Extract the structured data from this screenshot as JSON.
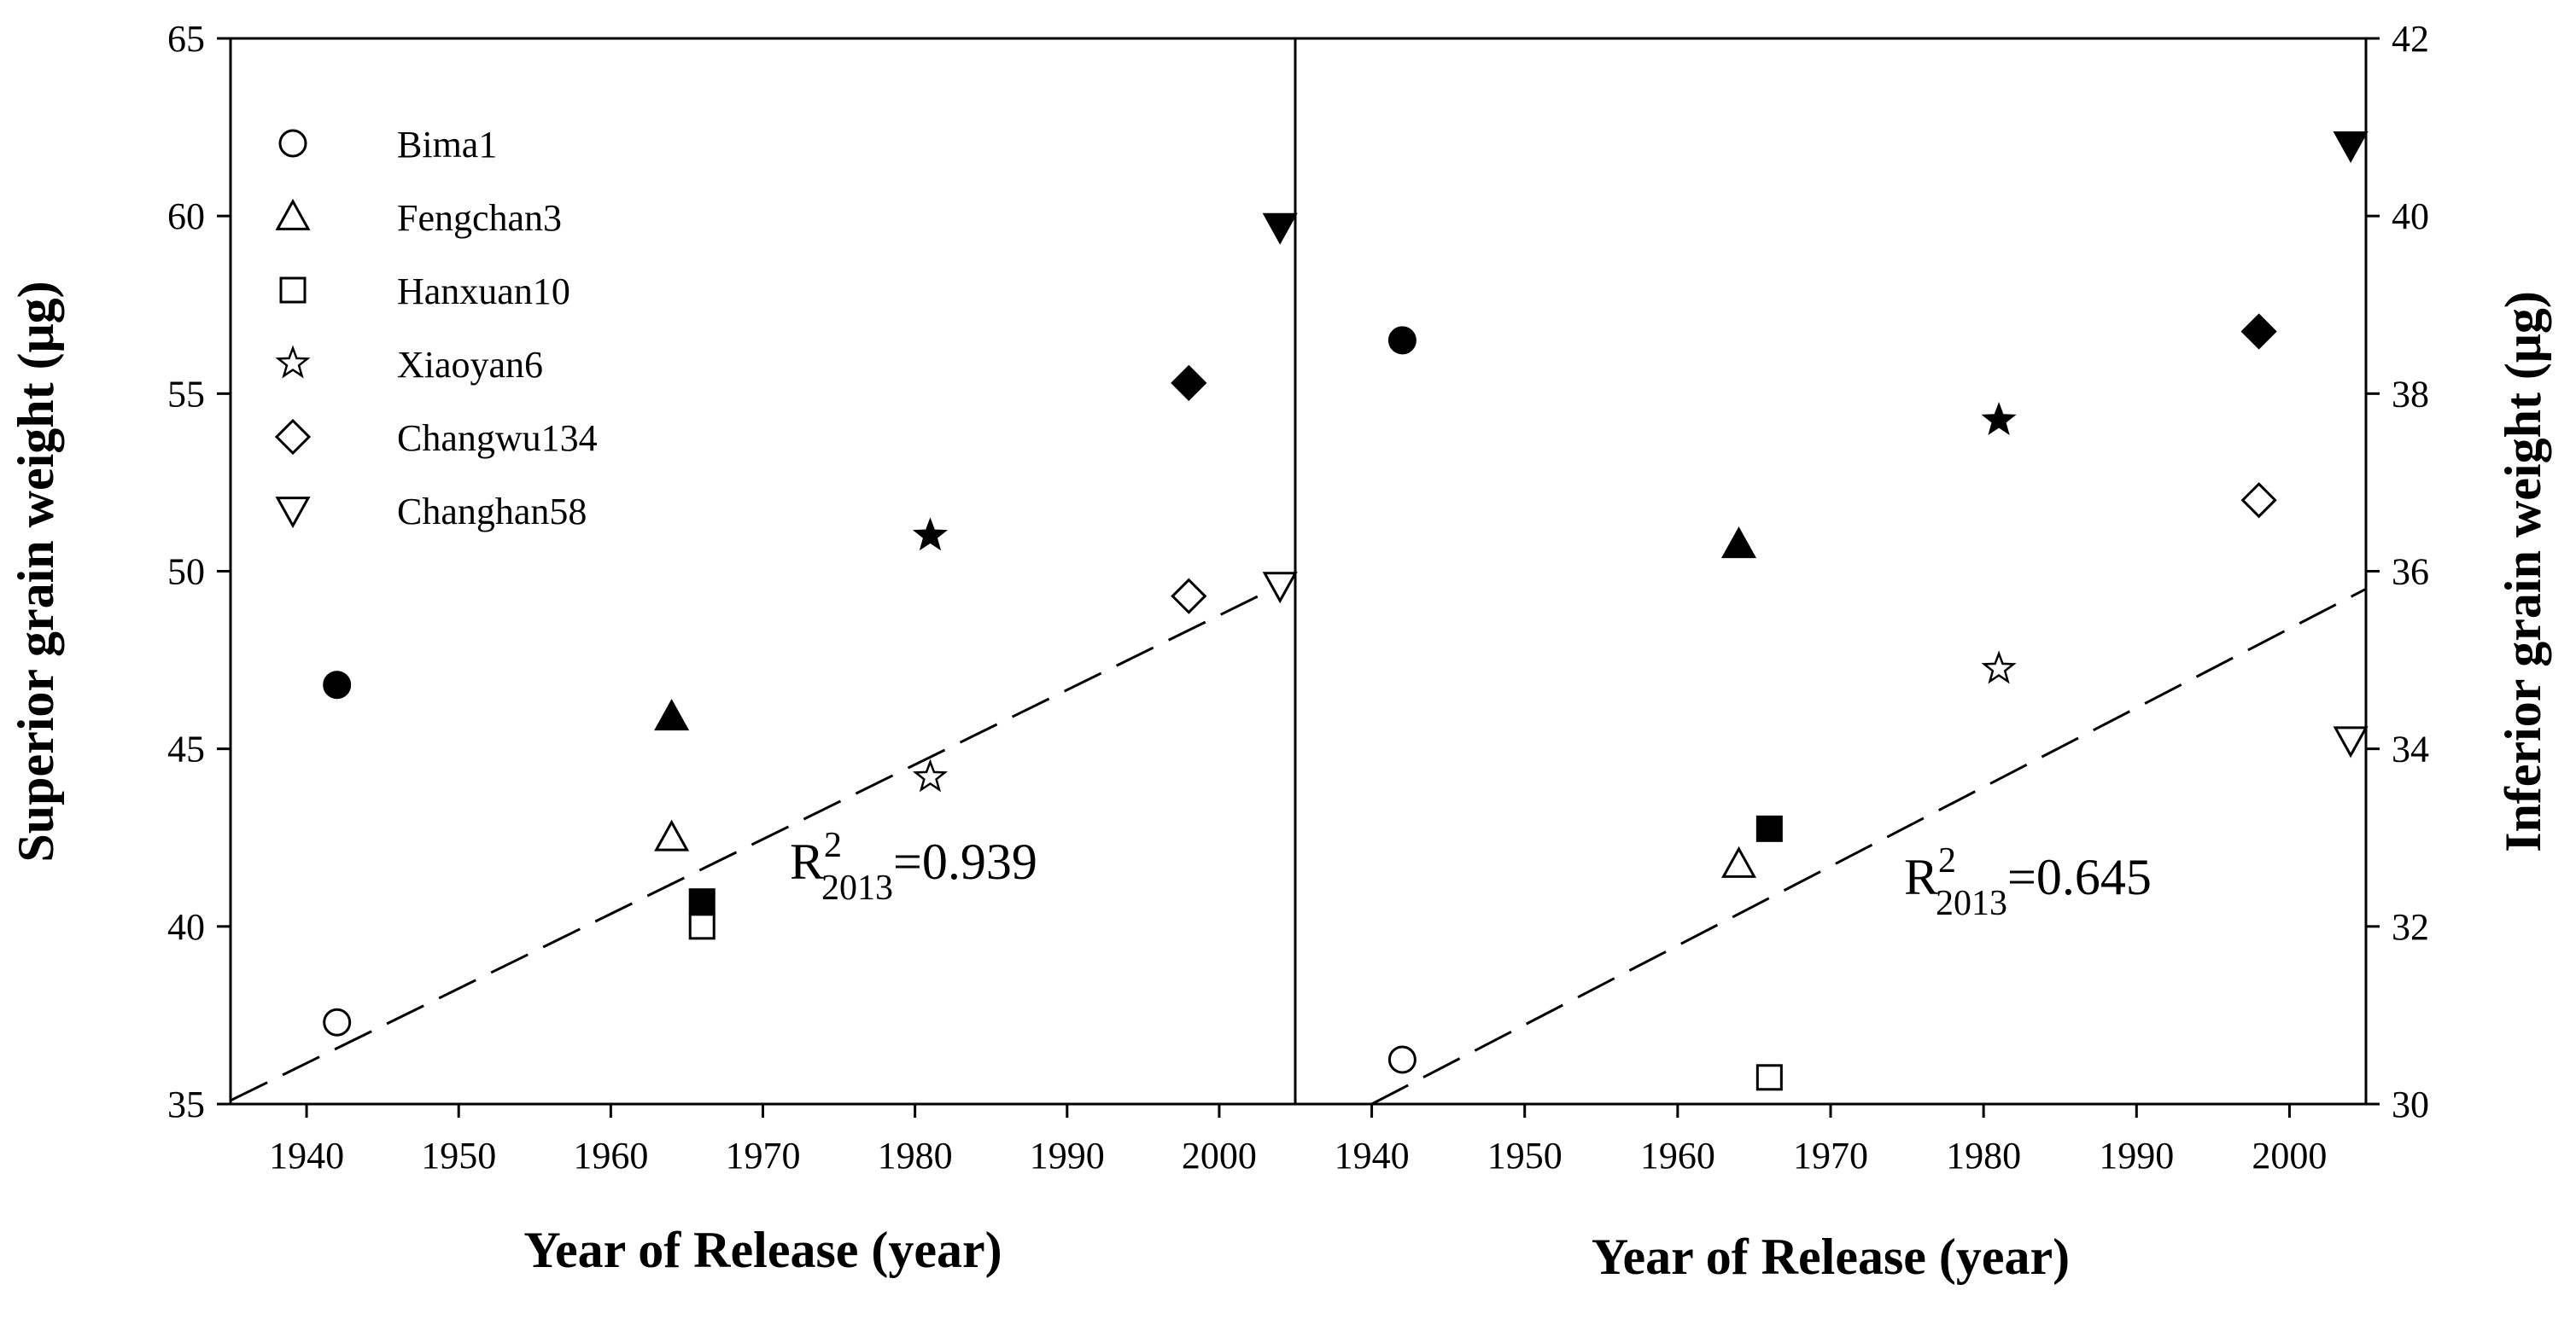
{
  "chart_data": [
    {
      "type": "scatter",
      "xlabel": "Year of Release (year)",
      "ylabel": "Superior grain weight (μg)",
      "xlim": [
        1935,
        2005
      ],
      "ylim": [
        35,
        65
      ],
      "xticks": [
        1940,
        1950,
        1960,
        1970,
        1980,
        1990,
        2000
      ],
      "yticks": [
        35,
        40,
        45,
        50,
        55,
        60,
        65
      ],
      "legend": {
        "placement": "top-left",
        "entries": [
          {
            "name": "Bima1",
            "marker": "circle"
          },
          {
            "name": "Fengchan3",
            "marker": "triangle-up"
          },
          {
            "name": "Hanxuan10",
            "marker": "square"
          },
          {
            "name": "Xiaoyan6",
            "marker": "star"
          },
          {
            "name": "Changwu134",
            "marker": "diamond"
          },
          {
            "name": "Changhan58",
            "marker": "triangle-down"
          }
        ]
      },
      "series": [
        {
          "cultivar": "Bima1",
          "x": 1942,
          "open": 37.3,
          "filled": 46.8
        },
        {
          "cultivar": "Fengchan3",
          "x": 1964,
          "open": 42.5,
          "filled": 45.9
        },
        {
          "cultivar": "Hanxuan10",
          "x": 1966,
          "open": 40.0,
          "filled": 40.7
        },
        {
          "cultivar": "Xiaoyan6",
          "x": 1981,
          "open": 44.2,
          "filled": 51.0
        },
        {
          "cultivar": "Changwu134",
          "x": 1998,
          "open": 49.3,
          "filled": 55.3
        },
        {
          "cultivar": "Changhan58",
          "x": 2004,
          "open": 49.6,
          "filled": 59.7
        }
      ],
      "regression": {
        "label_base": "R",
        "label_sup": "2",
        "label_sub": "2013",
        "label_value": "=0.939",
        "x": [
          1935,
          2004
        ],
        "y": [
          35.1,
          49.6
        ]
      }
    },
    {
      "type": "scatter",
      "xlabel": "Year of Release (year)",
      "ylabel": "Inferior grain weight (μg)",
      "xlim": [
        1935,
        2005
      ],
      "ylim": [
        30,
        42
      ],
      "xticks": [
        1940,
        1950,
        1960,
        1970,
        1980,
        1990,
        2000
      ],
      "yticks": [
        30,
        32,
        34,
        36,
        38,
        40,
        42
      ],
      "series": [
        {
          "cultivar": "Bima1",
          "x": 1942,
          "open": 30.5,
          "filled": 38.6
        },
        {
          "cultivar": "Fengchan3",
          "x": 1964,
          "open": 32.7,
          "filled": 36.3
        },
        {
          "cultivar": "Hanxuan10",
          "x": 1966,
          "open": 30.3,
          "filled": 33.1
        },
        {
          "cultivar": "Xiaoyan6",
          "x": 1981,
          "open": 34.9,
          "filled": 37.7
        },
        {
          "cultivar": "Changwu134",
          "x": 1998,
          "open": 36.8,
          "filled": 38.7
        },
        {
          "cultivar": "Changhan58",
          "x": 2004,
          "open": 34.1,
          "filled": 40.8
        }
      ],
      "regression": {
        "label_base": "R",
        "label_sup": "2",
        "label_sub": "2013",
        "label_value": "=0.645",
        "x": [
          1940,
          2005
        ],
        "y": [
          30.0,
          35.8
        ]
      }
    }
  ]
}
